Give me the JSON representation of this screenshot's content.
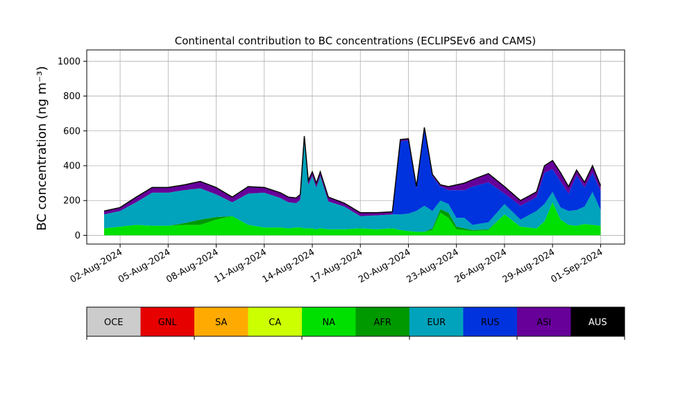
{
  "chart_data": {
    "type": "area",
    "stacked": true,
    "title": "Continental contribution to BC concentrations (ECLIPSEv6 and CAMS)",
    "ylabel": "BC concentration (ng m⁻³)",
    "xlabel": "",
    "x_start": "2024-08-01",
    "x_end": "2024-09-01",
    "x_tick_labels": [
      "02-Aug-2024",
      "05-Aug-2024",
      "08-Aug-2024",
      "11-Aug-2024",
      "14-Aug-2024",
      "17-Aug-2024",
      "20-Aug-2024",
      "23-Aug-2024",
      "26-Aug-2024",
      "29-Aug-2024",
      "01-Sep-2024"
    ],
    "x_ticks": [
      "2024-08-02",
      "2024-08-05",
      "2024-08-08",
      "2024-08-11",
      "2024-08-14",
      "2024-08-17",
      "2024-08-20",
      "2024-08-23",
      "2024-08-26",
      "2024-08-29",
      "2024-09-01"
    ],
    "y_ticks": [
      0,
      200,
      400,
      600,
      800,
      1000
    ],
    "ylim": [
      -50,
      1065
    ],
    "xlim": [
      "2024-07-30T22:00",
      "2024-09-02T12:00"
    ],
    "grid": true,
    "x": [
      "2024-08-01",
      "2024-08-02",
      "2024-08-03",
      "2024-08-04",
      "2024-08-05",
      "2024-08-06",
      "2024-08-07",
      "2024-08-08",
      "2024-08-09",
      "2024-08-10",
      "2024-08-11",
      "2024-08-12",
      "2024-08-12T12:00",
      "2024-08-13",
      "2024-08-13T06:00",
      "2024-08-13T12:00",
      "2024-08-13T18:00",
      "2024-08-14",
      "2024-08-14T06:00",
      "2024-08-14T12:00",
      "2024-08-15",
      "2024-08-16",
      "2024-08-17",
      "2024-08-18",
      "2024-08-19",
      "2024-08-19T12:00",
      "2024-08-20",
      "2024-08-20T12:00",
      "2024-08-21",
      "2024-08-21T12:00",
      "2024-08-22",
      "2024-08-22T12:00",
      "2024-08-23",
      "2024-08-23T12:00",
      "2024-08-24",
      "2024-08-25",
      "2024-08-26",
      "2024-08-27",
      "2024-08-28",
      "2024-08-28T12:00",
      "2024-08-29",
      "2024-08-29T12:00",
      "2024-08-30",
      "2024-08-30T12:00",
      "2024-08-31",
      "2024-08-31T12:00",
      "2024-09-01"
    ],
    "series": [
      {
        "name": "OCE",
        "color": "#cccccc",
        "values": [
          0,
          0,
          0,
          0,
          0,
          0,
          0,
          0,
          0,
          0,
          0,
          0,
          0,
          0,
          0,
          0,
          0,
          0,
          0,
          0,
          0,
          0,
          0,
          0,
          0,
          0,
          0,
          0,
          0,
          0,
          0,
          0,
          0,
          0,
          0,
          0,
          0,
          0,
          0,
          0,
          0,
          0,
          0,
          0,
          0,
          0,
          0
        ]
      },
      {
        "name": "GNL",
        "color": "#e60000",
        "values": [
          0,
          0,
          0,
          0,
          0,
          0,
          0,
          0,
          0,
          0,
          0,
          0,
          0,
          0,
          0,
          0,
          0,
          0,
          0,
          0,
          0,
          0,
          0,
          0,
          0,
          0,
          0,
          0,
          0,
          0,
          0,
          0,
          0,
          0,
          0,
          0,
          0,
          0,
          0,
          0,
          0,
          0,
          0,
          0,
          0,
          0,
          0
        ]
      },
      {
        "name": "SA",
        "color": "#ffaa00",
        "values": [
          0,
          0,
          0,
          0,
          0,
          0,
          0,
          0,
          0,
          0,
          0,
          0,
          0,
          0,
          0,
          0,
          0,
          0,
          0,
          0,
          0,
          0,
          0,
          0,
          0,
          0,
          0,
          0,
          0,
          0,
          0,
          0,
          0,
          0,
          0,
          0,
          0,
          0,
          0,
          0,
          0,
          0,
          0,
          0,
          0,
          0,
          0
        ]
      },
      {
        "name": "CA",
        "color": "#ccff00",
        "values": [
          0,
          0,
          0,
          0,
          0,
          0,
          0,
          0,
          0,
          0,
          0,
          0,
          0,
          0,
          0,
          0,
          0,
          0,
          0,
          0,
          0,
          0,
          0,
          0,
          0,
          0,
          0,
          0,
          0,
          0,
          0,
          0,
          0,
          0,
          0,
          0,
          0,
          0,
          0,
          0,
          0,
          0,
          0,
          0,
          0,
          0,
          0
        ]
      },
      {
        "name": "NA",
        "color": "#00e000",
        "values": [
          40,
          50,
          60,
          55,
          55,
          60,
          60,
          90,
          110,
          60,
          45,
          45,
          40,
          45,
          45,
          40,
          40,
          40,
          35,
          40,
          35,
          35,
          40,
          35,
          40,
          30,
          25,
          20,
          20,
          30,
          130,
          100,
          35,
          30,
          25,
          30,
          120,
          50,
          40,
          80,
          190,
          90,
          60,
          55,
          65,
          60,
          55
        ]
      },
      {
        "name": "AFR",
        "color": "#009900",
        "values": [
          0,
          0,
          0,
          0,
          0,
          10,
          30,
          15,
          0,
          0,
          0,
          0,
          0,
          0,
          0,
          0,
          0,
          0,
          0,
          0,
          0,
          0,
          0,
          0,
          0,
          0,
          0,
          0,
          0,
          10,
          20,
          30,
          15,
          10,
          5,
          5,
          0,
          0,
          0,
          0,
          0,
          0,
          0,
          0,
          0,
          0,
          0
        ]
      },
      {
        "name": "EUR",
        "color": "#00a3bb",
        "values": [
          80,
          90,
          130,
          190,
          190,
          190,
          180,
          130,
          80,
          180,
          200,
          170,
          150,
          140,
          160,
          500,
          250,
          300,
          240,
          300,
          160,
          130,
          70,
          80,
          80,
          90,
          100,
          120,
          150,
          100,
          50,
          50,
          50,
          60,
          30,
          40,
          60,
          40,
          100,
          100,
          60,
          70,
          80,
          90,
          100,
          190,
          90
        ]
      },
      {
        "name": "RUS",
        "color": "#0033dd",
        "values": [
          0,
          0,
          0,
          0,
          0,
          0,
          0,
          0,
          0,
          0,
          0,
          0,
          0,
          0,
          0,
          0,
          0,
          0,
          0,
          0,
          0,
          0,
          0,
          0,
          0,
          420,
          420,
          130,
          440,
          200,
          80,
          80,
          160,
          160,
          220,
          230,
          60,
          80,
          80,
          180,
          130,
          150,
          100,
          200,
          110,
          110,
          110
        ]
      },
      {
        "name": "ASI",
        "color": "#660099",
        "values": [
          20,
          20,
          30,
          30,
          30,
          30,
          40,
          40,
          30,
          40,
          30,
          30,
          30,
          30,
          30,
          30,
          25,
          25,
          25,
          25,
          25,
          20,
          20,
          15,
          15,
          10,
          10,
          10,
          10,
          10,
          10,
          20,
          30,
          40,
          40,
          50,
          40,
          30,
          30,
          40,
          50,
          50,
          40,
          30,
          30,
          40,
          30
        ]
      },
      {
        "name": "AUS",
        "color": "#000000",
        "values": [
          0,
          0,
          0,
          0,
          0,
          0,
          0,
          0,
          0,
          0,
          0,
          0,
          0,
          0,
          0,
          0,
          0,
          0,
          0,
          0,
          0,
          0,
          0,
          0,
          0,
          0,
          0,
          0,
          0,
          0,
          0,
          0,
          0,
          0,
          0,
          0,
          0,
          0,
          0,
          0,
          0,
          0,
          0,
          0,
          0,
          0,
          0
        ]
      }
    ],
    "total_outline_color": "#000000"
  },
  "legend": {
    "items": [
      {
        "name": "OCE",
        "color": "#cccccc"
      },
      {
        "name": "GNL",
        "color": "#e60000"
      },
      {
        "name": "SA",
        "color": "#ffaa00"
      },
      {
        "name": "CA",
        "color": "#ccff00"
      },
      {
        "name": "NA",
        "color": "#00e000"
      },
      {
        "name": "AFR",
        "color": "#009900"
      },
      {
        "name": "EUR",
        "color": "#00a3bb"
      },
      {
        "name": "RUS",
        "color": "#0033dd"
      },
      {
        "name": "ASI",
        "color": "#660099"
      },
      {
        "name": "AUS",
        "color": "#000000"
      }
    ]
  }
}
